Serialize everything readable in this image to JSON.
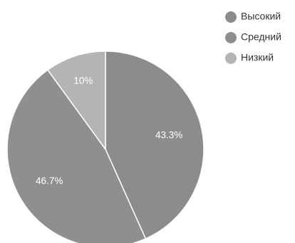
{
  "chart_data": {
    "type": "pie",
    "title": "",
    "legend_position": "top-right",
    "start_angle_deg": 0,
    "direction": "clockwise",
    "slices": [
      {
        "name": "Высокий",
        "value": 43.3,
        "label": "43.3%",
        "color": "#8c8c8c"
      },
      {
        "name": "Средний",
        "value": 46.7,
        "label": "46.7%",
        "color": "#8f8f8f"
      },
      {
        "name": "Низкий",
        "value": 10,
        "label": "10%",
        "color": "#b4b4b4"
      }
    ]
  }
}
